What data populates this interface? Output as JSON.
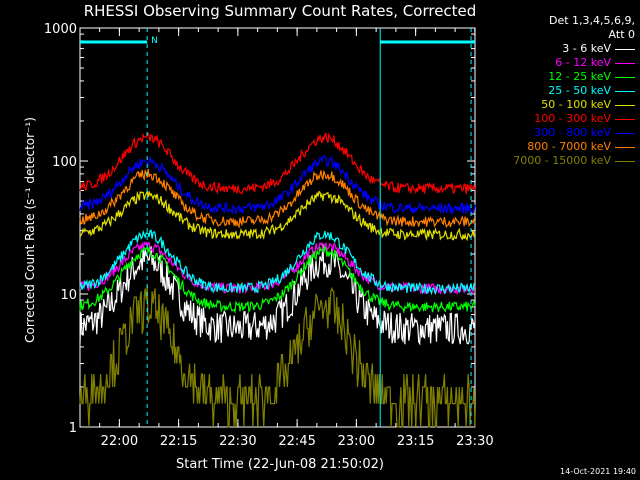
{
  "chart_data": {
    "type": "line",
    "title": "RHESSI Observing Summary Count Rates, Corrected",
    "xlabel": "Start Time (22-Jun-08 21:50:02)",
    "ylabel": "Corrected Count Rate (s⁻¹ detector⁻¹)",
    "yscale": "log",
    "ylim": [
      1,
      1000
    ],
    "xlim_minutes": [
      0,
      100
    ],
    "x_ticks": [
      "22:00",
      "22:15",
      "22:30",
      "22:45",
      "23:00",
      "23:15",
      "23:30"
    ],
    "y_ticks": [
      "1",
      "10",
      "100",
      "1000"
    ],
    "legend_header": [
      "Det 1,3,4,5,6,9,",
      "Att 0"
    ],
    "legend_placement": "right",
    "peaks_minutes": [
      17,
      62
    ],
    "series": [
      {
        "name": "3 - 6 keV",
        "color": "#ffffff",
        "peak": 18,
        "base": 5.5
      },
      {
        "name": "6 - 12 keV",
        "color": "#ff00ff",
        "peak": 23,
        "base": 11
      },
      {
        "name": "12 - 25 keV",
        "color": "#00ff00",
        "peak": 21,
        "base": 8
      },
      {
        "name": "25 - 50 keV",
        "color": "#00ffff",
        "peak": 28,
        "base": 11
      },
      {
        "name": "50 - 100 keV",
        "color": "#e0e000",
        "peak": 55,
        "base": 28
      },
      {
        "name": "100 - 300 keV",
        "color": "#ff0000",
        "peak": 150,
        "base": 62
      },
      {
        "name": "300 - 800 keV",
        "color": "#0000ff",
        "peak": 100,
        "base": 44
      },
      {
        "name": "800 - 7000 keV",
        "color": "#ff8000",
        "peak": 80,
        "base": 35
      },
      {
        "name": "7000 - 15000 keV",
        "color": "#808000",
        "peak": 8,
        "base": 1.6
      }
    ],
    "annotations": [
      {
        "type": "flag_bar",
        "label": "N",
        "x_minutes": [
          0,
          17
        ],
        "color": "#00ffff"
      },
      {
        "type": "flag_bar",
        "label": "",
        "x_minutes": [
          76,
          100
        ],
        "color": "#00ffff"
      }
    ],
    "vertical_lines": [
      {
        "x_minutes": 17,
        "style": "dashed",
        "color": "#00ffff"
      },
      {
        "x_minutes": 76,
        "style": "solid",
        "color": "#00ffff"
      },
      {
        "x_minutes": 99,
        "style": "dashed",
        "color": "#00ffff"
      }
    ]
  },
  "timestamp": "14-Oct-2021 19:40"
}
